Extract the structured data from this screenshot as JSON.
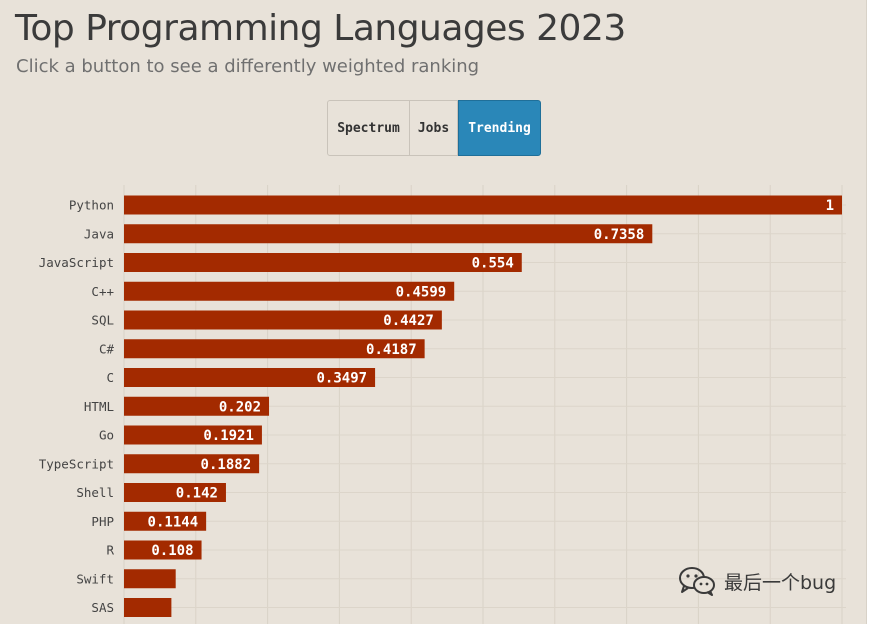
{
  "header": {
    "title": "Top Programming Languages 2023",
    "subtitle": "Click a button to see a differently weighted ranking"
  },
  "buttons": {
    "spectrum_label": "Spectrum",
    "jobs_label": "Jobs",
    "trending_label": "Trending",
    "active": "Trending",
    "active_color": "#2a87b8"
  },
  "watermark": {
    "text": "最后一个bug",
    "icon": "wechat-icon"
  },
  "chart_data": {
    "type": "bar",
    "orientation": "horizontal",
    "bar_color": "#a32a00",
    "grid": true,
    "xlim": [
      0,
      1
    ],
    "categories": [
      "Python",
      "Java",
      "JavaScript",
      "C++",
      "SQL",
      "C#",
      "C",
      "HTML",
      "Go",
      "TypeScript",
      "Shell",
      "PHP",
      "R",
      "Swift",
      "SAS"
    ],
    "values": [
      1,
      0.7358,
      0.554,
      0.4599,
      0.4427,
      0.4187,
      0.3497,
      0.202,
      0.1921,
      0.1882,
      0.142,
      0.1144,
      0.108,
      0.072,
      0.066
    ],
    "labels": [
      "1",
      "0.7358",
      "0.554",
      "0.4599",
      "0.4427",
      "0.4187",
      "0.3497",
      "0.202",
      "0.1921",
      "0.1882",
      "0.142",
      "0.1144",
      "0.108",
      "",
      ""
    ]
  }
}
